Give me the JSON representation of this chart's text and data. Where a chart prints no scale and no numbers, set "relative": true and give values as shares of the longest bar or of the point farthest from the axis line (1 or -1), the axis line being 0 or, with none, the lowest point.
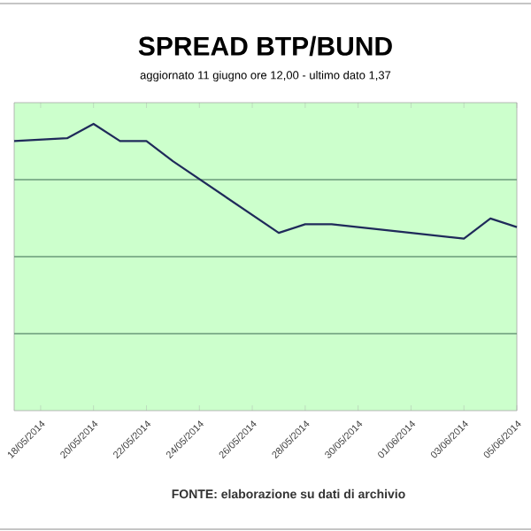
{
  "chart_data": {
    "type": "line",
    "title": "SPREAD BTP/BUND",
    "subtitle": "aggiornato 11 giugno ore 12,00 - ultimo dato 1,37",
    "annotations": [
      "FONTE:  elaborazione su dati di archivio"
    ],
    "relative": true,
    "ref_lines": [
      {
        "axis": "y",
        "value": 0.2685,
        "color": "#6a9a7a"
      },
      {
        "axis": "y",
        "value": 0.537,
        "color": "#6a9a7a"
      },
      {
        "axis": "y",
        "value": 0.8055,
        "color": "#6a9a7a"
      }
    ],
    "x": [
      "2014-05-17",
      "2014-05-19",
      "2014-05-20",
      "2014-05-21",
      "2014-05-22",
      "2014-05-23",
      "2014-05-27",
      "2014-05-28",
      "2014-05-29",
      "2014-05-30",
      "2014-06-01",
      "2014-06-03",
      "2014-06-04",
      "2014-06-05"
    ],
    "xlim": [
      "2014-05-17",
      "2014-06-05"
    ],
    "xticks": [
      {
        "value": "2014-05-18",
        "label": "18/05/2014"
      },
      {
        "value": "2014-05-20",
        "label": "20/05/2014"
      },
      {
        "value": "2014-05-22",
        "label": "22/05/2014"
      },
      {
        "value": "2014-05-24",
        "label": "24/05/2014"
      },
      {
        "value": "2014-05-26",
        "label": "26/05/2014"
      },
      {
        "value": "2014-05-28",
        "label": "28/05/2014"
      },
      {
        "value": "2014-05-30",
        "label": "30/05/2014"
      },
      {
        "value": "2014-06-01",
        "label": "01/06/2014"
      },
      {
        "value": "2014-06-03",
        "label": "03/06/2014"
      },
      {
        "value": "2014-06-05",
        "label": "05/06/2014"
      }
    ],
    "series": [
      {
        "color": "#1f2a5a",
        "values": [
          0.94,
          0.95,
          1,
          0.94,
          0.94,
          0.87,
          0.62,
          0.65,
          0.65,
          0.64,
          0.62,
          0.6,
          0.67,
          0.64
        ]
      }
    ]
  }
}
